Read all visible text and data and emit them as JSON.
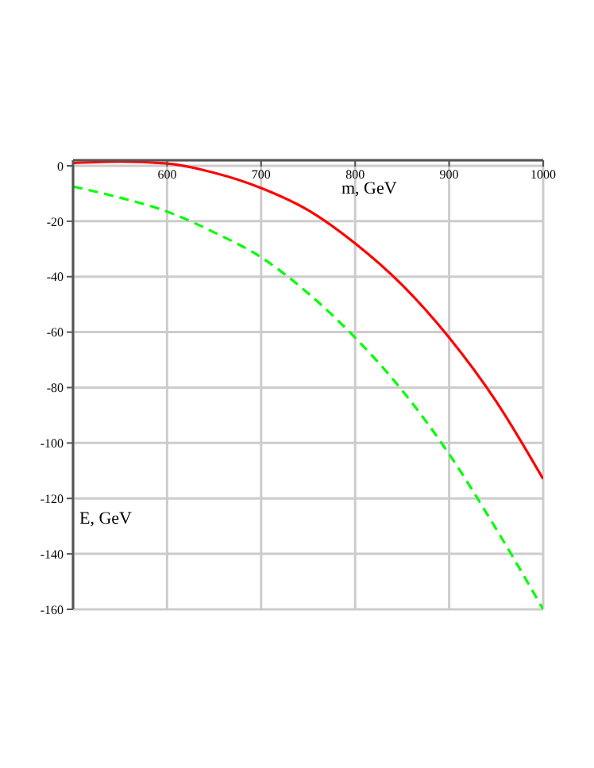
{
  "chart_data": {
    "type": "line",
    "xlabel": "m, GeV",
    "ylabel": "E, GeV",
    "x": [
      500,
      550,
      600,
      650,
      700,
      750,
      800,
      850,
      900,
      950,
      1000
    ],
    "series": [
      {
        "color": "#ff0000",
        "line_style": "solid",
        "values": [
          1,
          1.5,
          0.8,
          -2.5,
          -8,
          -16,
          -28,
          -43,
          -62,
          -85,
          -113
        ]
      },
      {
        "color": "#00ff00",
        "line_style": "dashed",
        "values": [
          -7.5,
          -11.5,
          -16.5,
          -24,
          -33,
          -46,
          -62,
          -81,
          -104,
          -131,
          -160
        ]
      }
    ],
    "xlim": [
      500,
      1000
    ],
    "xticks": [
      600,
      700,
      800,
      900,
      1000
    ],
    "ylim": [
      -160,
      2
    ],
    "yticks": [
      0,
      -20,
      -40,
      -60,
      -80,
      -100,
      -120,
      -140,
      -160
    ],
    "grid": true,
    "marker": "none"
  }
}
